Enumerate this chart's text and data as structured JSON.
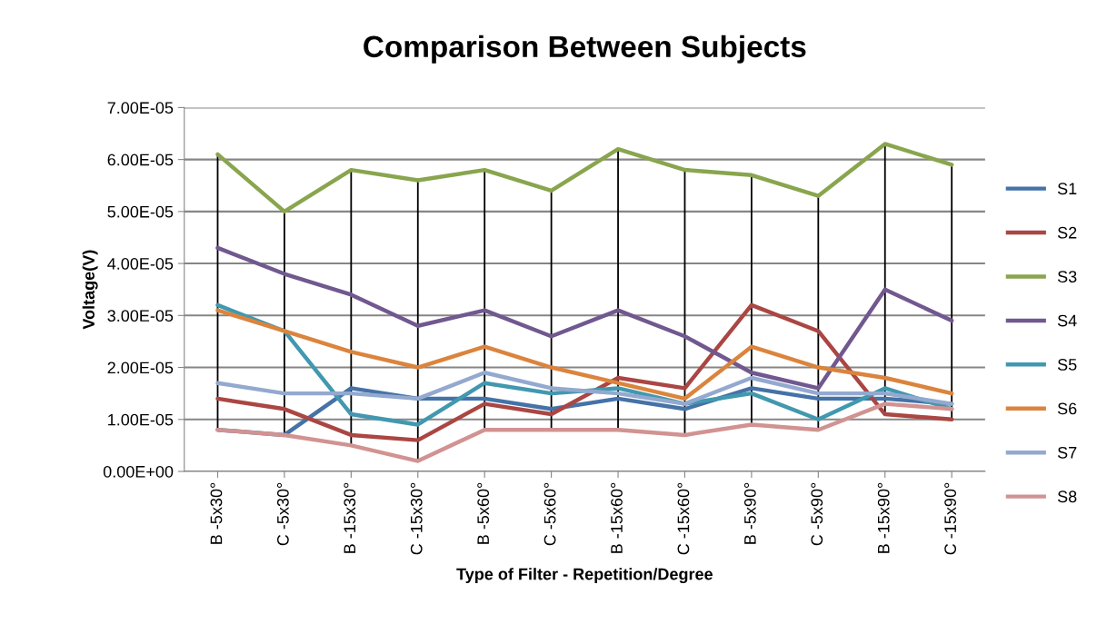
{
  "chart_data": {
    "type": "line",
    "title": "Comparison Between Subjects",
    "xlabel": "Type of Filter - Repetition/Degree",
    "ylabel": "Voltage(V)",
    "categories": [
      "B -5x30°",
      "C -5x30°",
      "B -15x30°",
      "C -15x30°",
      "B -5x60°",
      "C -5x60°",
      "B -15x60°",
      "C -15x60°",
      "B -5x90°",
      "C -5x90°",
      "B -15x90°",
      "C -15x90°"
    ],
    "series": [
      {
        "name": "S1",
        "color": "#4572a7",
        "values": [
          8e-06,
          7e-06,
          1.6e-05,
          1.4e-05,
          1.4e-05,
          1.2e-05,
          1.4e-05,
          1.2e-05,
          1.6e-05,
          1.4e-05,
          1.4e-05,
          1.3e-05
        ]
      },
      {
        "name": "S2",
        "color": "#aa4643",
        "values": [
          1.4e-05,
          1.2e-05,
          7e-06,
          6e-06,
          1.3e-05,
          1.1e-05,
          1.8e-05,
          1.6e-05,
          3.2e-05,
          2.7e-05,
          1.1e-05,
          1e-05
        ]
      },
      {
        "name": "S3",
        "color": "#89a54e",
        "values": [
          6.1e-05,
          5e-05,
          5.8e-05,
          5.6e-05,
          5.8e-05,
          5.4e-05,
          6.2e-05,
          5.8e-05,
          5.7e-05,
          5.3e-05,
          6.3e-05,
          5.9e-05
        ]
      },
      {
        "name": "S4",
        "color": "#71588f",
        "values": [
          4.3e-05,
          3.8e-05,
          3.4e-05,
          2.8e-05,
          3.1e-05,
          2.6e-05,
          3.1e-05,
          2.6e-05,
          1.9e-05,
          1.6e-05,
          3.5e-05,
          2.9e-05
        ]
      },
      {
        "name": "S5",
        "color": "#4198af",
        "values": [
          3.2e-05,
          2.7e-05,
          1.1e-05,
          9e-06,
          1.7e-05,
          1.5e-05,
          1.6e-05,
          1.3e-05,
          1.5e-05,
          1e-05,
          1.6e-05,
          1.2e-05
        ]
      },
      {
        "name": "S6",
        "color": "#db843d",
        "values": [
          3.1e-05,
          2.7e-05,
          2.3e-05,
          2e-05,
          2.4e-05,
          2e-05,
          1.7e-05,
          1.4e-05,
          2.4e-05,
          2e-05,
          1.8e-05,
          1.5e-05
        ]
      },
      {
        "name": "S7",
        "color": "#93a9cf",
        "values": [
          1.7e-05,
          1.5e-05,
          1.5e-05,
          1.4e-05,
          1.9e-05,
          1.6e-05,
          1.5e-05,
          1.3e-05,
          1.8e-05,
          1.5e-05,
          1.5e-05,
          1.3e-05
        ]
      },
      {
        "name": "S8",
        "color": "#d19392",
        "values": [
          8e-06,
          7e-06,
          5e-06,
          2e-06,
          8e-06,
          8e-06,
          8e-06,
          7e-06,
          9e-06,
          8e-06,
          1.3e-05,
          1.2e-05
        ]
      }
    ],
    "ylim": [
      0,
      7e-05
    ],
    "yticks": [
      {
        "value": 0,
        "label": "0.00E+00"
      },
      {
        "value": 1e-05,
        "label": "1.00E-05"
      },
      {
        "value": 2e-05,
        "label": "2.00E-05"
      },
      {
        "value": 3e-05,
        "label": "3.00E-05"
      },
      {
        "value": 4e-05,
        "label": "4.00E-05"
      },
      {
        "value": 5e-05,
        "label": "5.00E-05"
      },
      {
        "value": 6e-05,
        "label": "6.00E-05"
      },
      {
        "value": 7e-05,
        "label": "7.00E-05"
      }
    ],
    "ref_lines": [
      {
        "axis": "x",
        "value": "B -5x30°",
        "color": "#000000"
      },
      {
        "axis": "x",
        "value": "C -5x30°",
        "color": "#000000"
      },
      {
        "axis": "x",
        "value": "B -15x30°",
        "color": "#000000"
      },
      {
        "axis": "x",
        "value": "C -15x30°",
        "color": "#000000"
      },
      {
        "axis": "x",
        "value": "B -5x60°",
        "color": "#000000"
      },
      {
        "axis": "x",
        "value": "C -5x60°",
        "color": "#000000"
      },
      {
        "axis": "x",
        "value": "B -15x60°",
        "color": "#000000"
      },
      {
        "axis": "x",
        "value": "C -15x60°",
        "color": "#000000"
      },
      {
        "axis": "x",
        "value": "B -5x90°",
        "color": "#000000"
      },
      {
        "axis": "x",
        "value": "C -5x90°",
        "color": "#000000"
      },
      {
        "axis": "x",
        "value": "B -15x90°",
        "color": "#000000"
      },
      {
        "axis": "x",
        "value": "C -15x90°",
        "color": "#000000"
      }
    ],
    "grid": "y",
    "legend": "right",
    "marker": "none",
    "line_style": "solid"
  }
}
